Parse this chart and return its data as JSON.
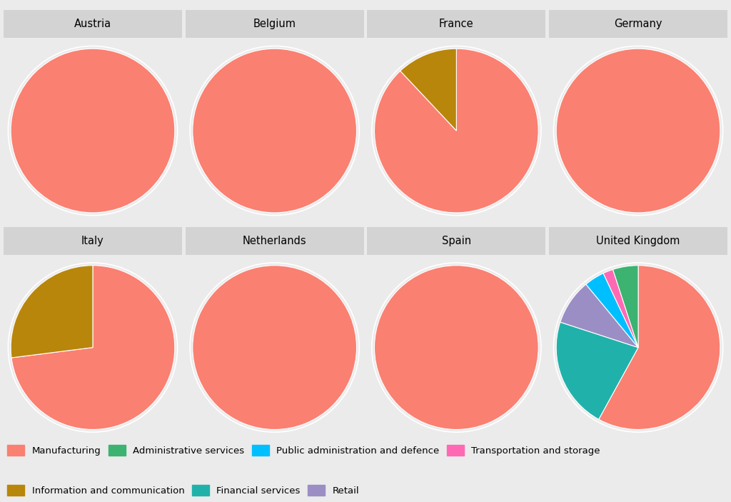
{
  "countries": [
    "Austria",
    "Belgium",
    "France",
    "Germany",
    "Italy",
    "Netherlands",
    "Spain",
    "United Kingdom"
  ],
  "colors": {
    "Manufacturing": "#FA8072",
    "Information and communication": "#B8860B",
    "Administrative services": "#3CB371",
    "Financial services": "#20B2AA",
    "Public administration and defence": "#00BFFF",
    "Retail": "#9B8EC4",
    "Transportation and storage": "#FF69B4"
  },
  "pie_data": {
    "Austria": [
      [
        "Manufacturing",
        100
      ]
    ],
    "Belgium": [
      [
        "Manufacturing",
        100
      ]
    ],
    "France": [
      [
        "Manufacturing",
        88
      ],
      [
        "Information and communication",
        12
      ]
    ],
    "Germany": [
      [
        "Manufacturing",
        100
      ]
    ],
    "Italy": [
      [
        "Manufacturing",
        73
      ],
      [
        "Information and communication",
        27
      ]
    ],
    "Netherlands": [
      [
        "Manufacturing",
        100
      ]
    ],
    "Spain": [
      [
        "Manufacturing",
        100
      ]
    ],
    "United Kingdom": [
      [
        "Manufacturing",
        58
      ],
      [
        "Financial services",
        22
      ],
      [
        "Retail",
        9
      ],
      [
        "Public administration and defence",
        4
      ],
      [
        "Transportation and storage",
        2
      ],
      [
        "Administrative services",
        5
      ]
    ]
  },
  "legend_order": [
    "Manufacturing",
    "Information and communication",
    "Administrative services",
    "Financial services",
    "Public administration and defence",
    "Retail",
    "Transportation and storage"
  ],
  "bg_color": "#EBEBEB",
  "panel_bg": "#E8E8E8",
  "title_bg": "#D3D3D3",
  "ring_color": "#FFFFFF"
}
